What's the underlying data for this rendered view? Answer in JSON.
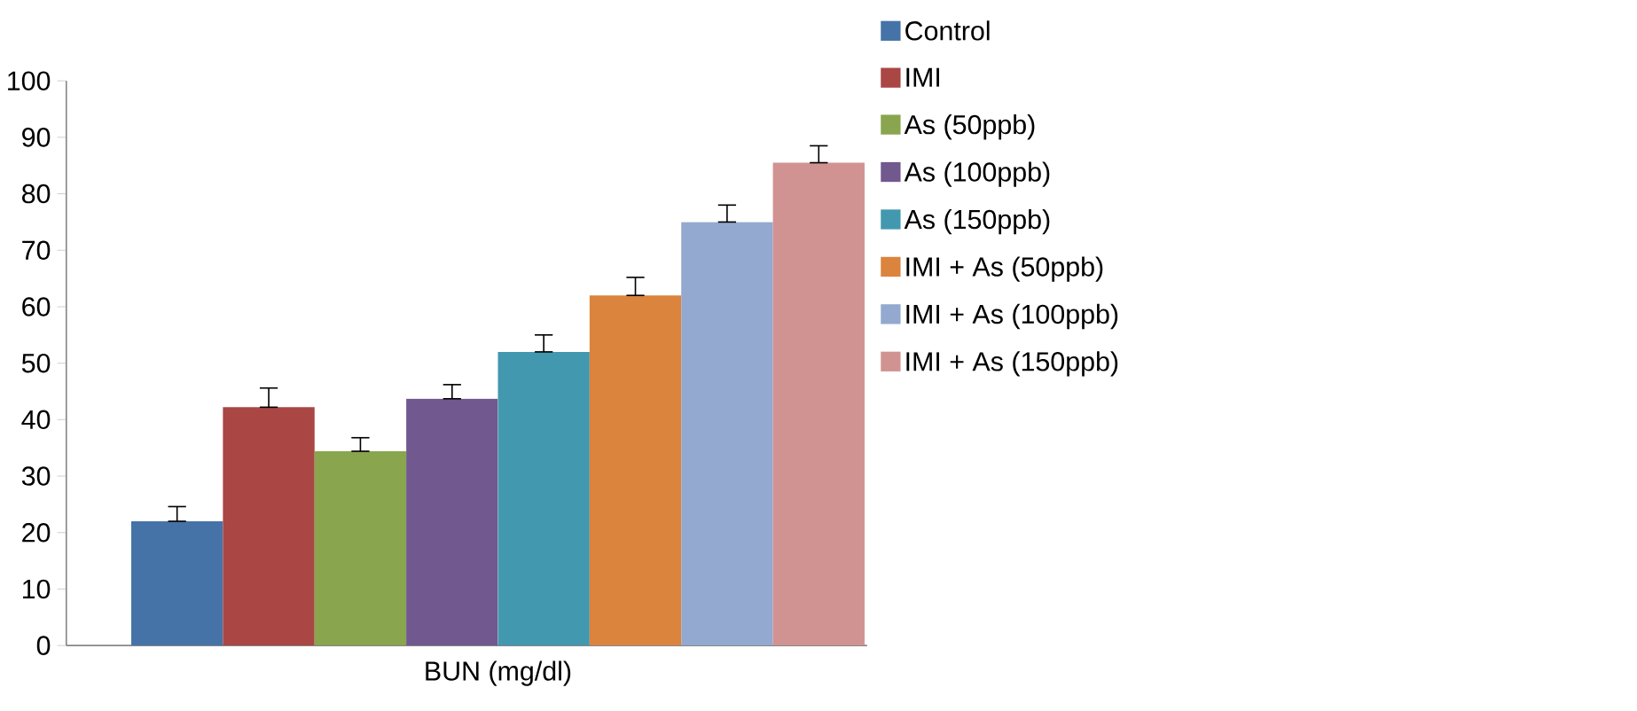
{
  "chart_data": {
    "type": "bar",
    "categories": [
      "BUN (mg/dl)"
    ],
    "series": [
      {
        "name": "Control",
        "color": "#4573a7",
        "values": [
          22
        ],
        "errors": [
          [
            22,
            24.6
          ]
        ]
      },
      {
        "name": "IMI",
        "color": "#aa4644",
        "values": [
          42.2
        ],
        "errors": [
          [
            42.2,
            45.6
          ]
        ]
      },
      {
        "name": "As (50ppb)",
        "color": "#89a54e",
        "values": [
          34.4
        ],
        "errors": [
          [
            34.4,
            36.8
          ]
        ]
      },
      {
        "name": "As (100ppb)",
        "color": "#71588f",
        "values": [
          43.7
        ],
        "errors": [
          [
            43.7,
            46.2
          ]
        ]
      },
      {
        "name": "As (150ppb)",
        "color": "#4298af",
        "values": [
          52
        ],
        "errors": [
          [
            52,
            55
          ]
        ]
      },
      {
        "name": "IMI + As (50ppb)",
        "color": "#db843d",
        "values": [
          62
        ],
        "errors": [
          [
            62,
            65.2
          ]
        ]
      },
      {
        "name": "IMI + As (100ppb)",
        "color": "#93a9cf",
        "values": [
          75
        ],
        "errors": [
          [
            75,
            78
          ]
        ]
      },
      {
        "name": "IMI + As (150ppb)",
        "color": "#d19392",
        "values": [
          85.5
        ],
        "errors": [
          [
            85.5,
            88.5
          ]
        ]
      }
    ],
    "ylim": [
      0,
      100
    ],
    "yticks": [
      0,
      10,
      20,
      30,
      40,
      50,
      60,
      70,
      80,
      90,
      100
    ],
    "grid": false,
    "legend": "right"
  }
}
